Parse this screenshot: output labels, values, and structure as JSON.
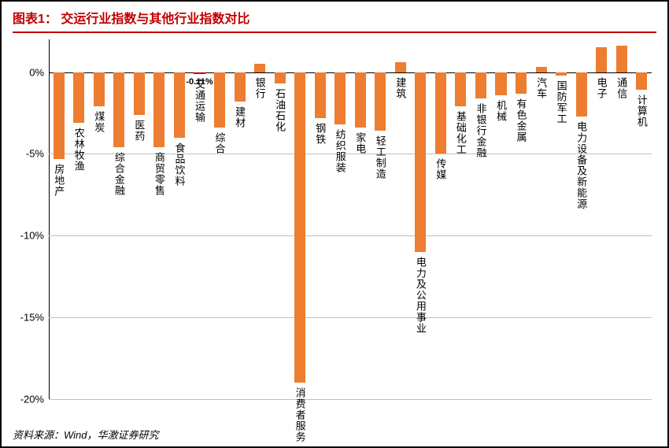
{
  "title_prefix": "图表1：",
  "title_main": "交运行业指数与其他行业指数对比",
  "source": "资料来源：Wind，华激证券研究",
  "chart": {
    "type": "bar",
    "ylim": [
      -20,
      2
    ],
    "yticks": [
      0,
      -5,
      -10,
      -15,
      -20
    ],
    "ytick_labels": [
      "0%",
      "-5%",
      "-10%",
      "-15%",
      "-20%"
    ],
    "background_color": "#ffffff",
    "grid_color": "#bfbfbf",
    "axis_color": "#000000",
    "accent_color": "#c00000",
    "bar_color": "#ed7d31",
    "highlight_bar_color": "#c00000",
    "bar_width_ratio": 0.55,
    "label_fontsize": 13,
    "title_fontsize": 16,
    "highlight_label": "-0.11%",
    "categories": [
      "房地产",
      "农林牧渔",
      "煤炭",
      "综合金融",
      "医药",
      "商贸零售",
      "食品饮料",
      "交通运输",
      "综合",
      "建材",
      "银行",
      "石油石化",
      "消费者服务",
      "钢铁",
      "纺织服装",
      "家电",
      "轻工制造",
      "建筑",
      "电力及公用事业",
      "传媒",
      "基础化工",
      "非银行金融",
      "机械",
      "有色金属",
      "汽车",
      "国防军工",
      "电力设备及新能源",
      "电子",
      "通信",
      "计算机"
    ],
    "values": [
      -5.3,
      -3.1,
      -2.1,
      -4.6,
      -2.6,
      -4.6,
      -4.0,
      -0.11,
      -3.4,
      -1.8,
      0.5,
      -0.7,
      -19.0,
      -2.8,
      -3.2,
      -3.4,
      -3.6,
      0.6,
      -11.0,
      -5.0,
      -2.1,
      -1.6,
      -1.4,
      -1.3,
      0.3,
      -0.2,
      -2.7,
      1.5,
      1.6,
      -1.1
    ],
    "highlight_index": 7
  }
}
